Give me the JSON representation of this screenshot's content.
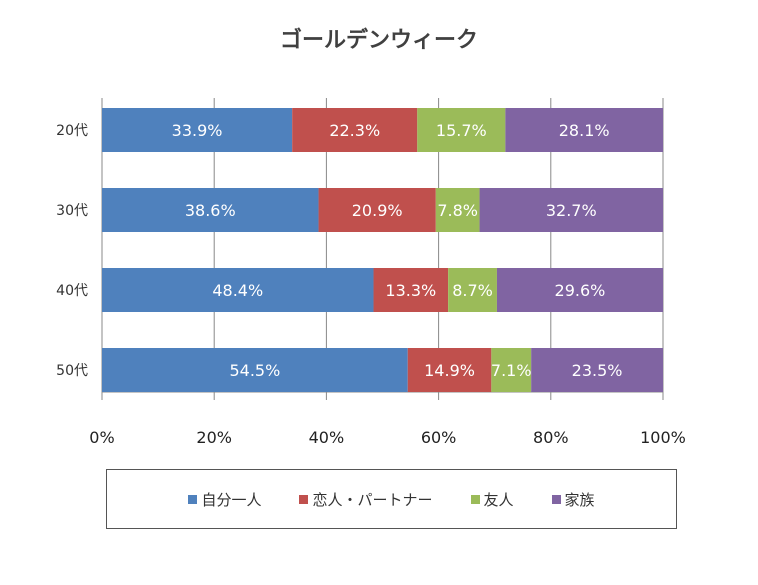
{
  "chart_data": {
    "type": "bar",
    "orientation": "horizontal",
    "stacked": "percent",
    "title": "ゴールデンウィーク",
    "categories": [
      "20代",
      "30代",
      "40代",
      "50代"
    ],
    "series": [
      {
        "name": "自分一人",
        "color": "#4F81BD",
        "values": [
          33.9,
          38.6,
          48.4,
          54.5
        ]
      },
      {
        "name": "恋人・パートナー",
        "color": "#C0504D",
        "values": [
          22.3,
          20.9,
          13.3,
          14.9
        ]
      },
      {
        "name": "友人",
        "color": "#9BBB59",
        "values": [
          15.7,
          7.8,
          8.7,
          7.1
        ]
      },
      {
        "name": "家族",
        "color": "#8064A2",
        "values": [
          28.1,
          32.7,
          29.6,
          23.5
        ]
      }
    ],
    "xlim": [
      0,
      100
    ],
    "xticks": [
      "0%",
      "20%",
      "40%",
      "60%",
      "80%",
      "100%"
    ],
    "grid": "vertical",
    "legend": "bottom",
    "data_label_format": "{v}%"
  }
}
